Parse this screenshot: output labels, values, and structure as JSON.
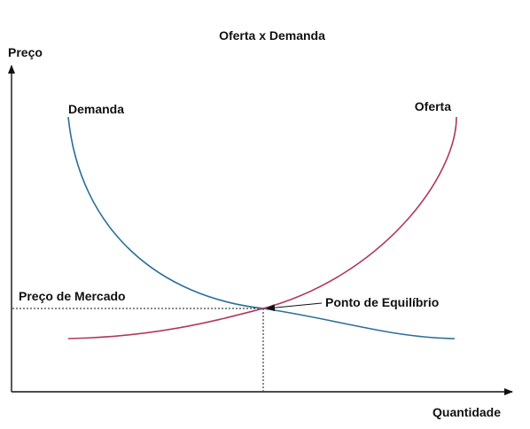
{
  "title": "Oferta x Demanda",
  "axes": {
    "y_label": "Preço",
    "x_label": "Quantidade"
  },
  "curves": {
    "demand": {
      "label": "Demanda",
      "color": "#2b6f9c"
    },
    "supply": {
      "label": "Oferta",
      "color": "#b03a5b"
    }
  },
  "annotations": {
    "market_price": "Preço de Mercado",
    "equilibrium": "Ponto de Equilíbrio"
  },
  "colors": {
    "axis": "#111111",
    "guide": "#111111"
  }
}
